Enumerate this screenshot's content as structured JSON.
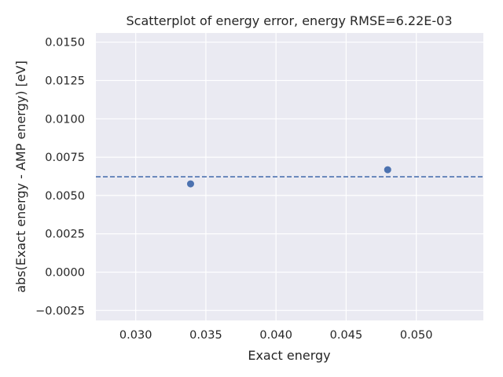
{
  "chart_data": {
    "type": "scatter",
    "title": "Scatterplot of energy error, energy RMSE=6.22E-03",
    "xlabel": "Exact energy",
    "ylabel": "abs(Exact energy - AMP energy) [eV]",
    "xlim": [
      0.02716,
      0.05478
    ],
    "ylim": [
      -0.00315,
      0.0156
    ],
    "x_ticks": [
      "0.030",
      "0.035",
      "0.040",
      "0.045",
      "0.050"
    ],
    "y_ticks": [
      "−0.0025",
      "0.0000",
      "0.0025",
      "0.0050",
      "0.0075",
      "0.0100",
      "0.0125",
      "0.0150"
    ],
    "points": [
      {
        "x": 0.03391,
        "y": 0.00576
      },
      {
        "x": 0.04796,
        "y": 0.00668
      }
    ],
    "reference_line": {
      "y": 0.00622,
      "style": "dashed"
    },
    "grid": true,
    "colors": {
      "background": "#eaeaf2",
      "grid": "#ffffff",
      "marker": "#4c72b0",
      "reference_line": "#4c72b0"
    }
  }
}
